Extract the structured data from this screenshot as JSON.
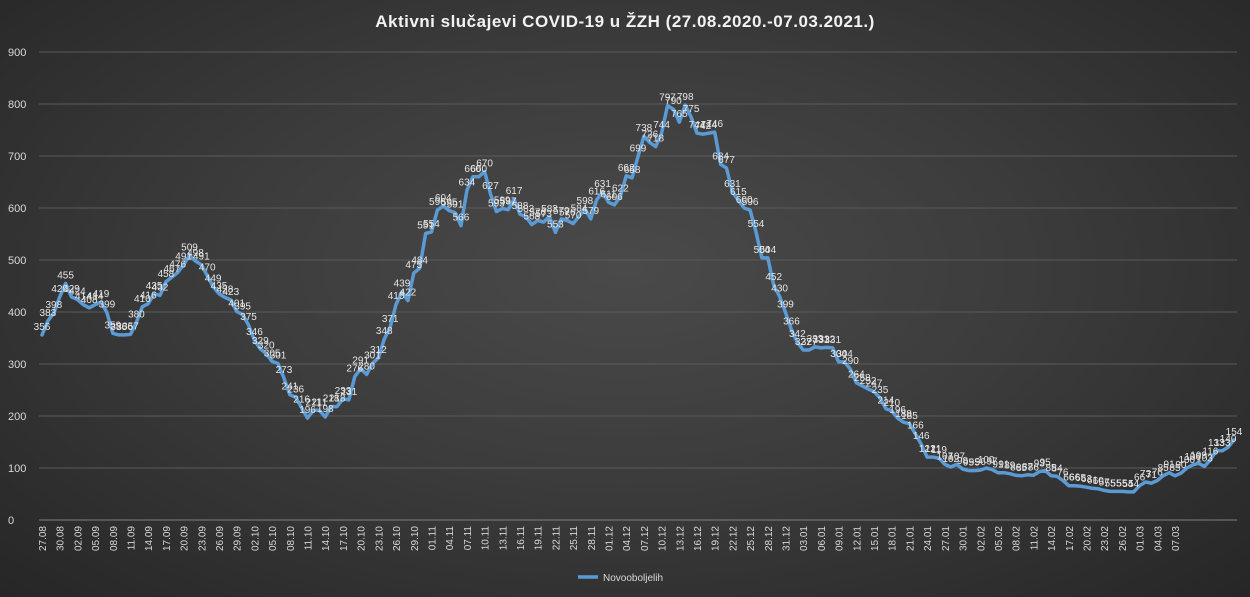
{
  "chart_data": {
    "type": "line",
    "title": "Aktivni  slučajevi  COVID-19  u  ŽZH  (27.08.2020.-07.03.2021.)",
    "xlabel": "",
    "ylabel": "",
    "ylim": [
      0,
      900
    ],
    "yticks": [
      "0",
      "100",
      "200",
      "300",
      "400",
      "500",
      "600",
      "700",
      "800",
      "900"
    ],
    "grid": true,
    "legend_position": "bottom-center",
    "line_color": "#5b9bd5",
    "x_tick_labels": [
      "27.08",
      "30.08",
      "02.09",
      "05.09",
      "08.09",
      "11.09",
      "14.09",
      "17.09",
      "20.09",
      "23.09",
      "26.09",
      "29.09",
      "02.10",
      "05.10",
      "08.10",
      "11.10",
      "14.10",
      "17.10",
      "20.10",
      "23.10",
      "26.10",
      "29.10",
      "01.11",
      "04.11",
      "07.11",
      "10.11",
      "13.11",
      "16.11",
      "19.11",
      "22.11",
      "25.11",
      "28.11",
      "01.12",
      "04.12",
      "07.12",
      "10.12",
      "13.12",
      "16.12",
      "19.12",
      "22.12",
      "25.12",
      "28.12",
      "31.12",
      "03.01",
      "06.01",
      "09.01",
      "12.01",
      "15.01",
      "18.01",
      "21.01",
      "24.01",
      "27.01",
      "30.01",
      "02.02",
      "05.02",
      "08.02",
      "11.02",
      "14.02",
      "17.02",
      "20.02",
      "23.02",
      "26.02",
      "01.03",
      "04.03",
      "07.03"
    ],
    "series": [
      {
        "name": "Novooboljelih",
        "values": [
          356,
          383,
          398,
          429,
          455,
          429,
          424,
          414,
          408,
          414,
          419,
          399,
          359,
          356,
          356,
          357,
          380,
          410,
          416,
          435,
          432,
          458,
          467,
          476,
          491,
          509,
          498,
          491,
          470,
          449,
          435,
          428,
          423,
          401,
          395,
          375,
          346,
          329,
          320,
          305,
          301,
          273,
          241,
          236,
          216,
          196,
          211,
          211,
          198,
          218,
          218,
          233,
          231,
          276,
          291,
          280,
          301,
          312,
          348,
          371,
          415,
          439,
          422,
          475,
          484,
          551,
          554,
          596,
          604,
          595,
          591,
          566,
          634,
          660,
          660,
          670,
          627,
          593,
          599,
          597,
          617,
          588,
          583,
          568,
          576,
          573,
          583,
          553,
          579,
          576,
          570,
          584,
          598,
          579,
          616,
          631,
          611,
          606,
          622,
          662,
          658,
          699,
          738,
          726,
          718,
          744,
          797,
          790,
          765,
          798,
          775,
          744,
          742,
          744,
          746,
          684,
          677,
          631,
          615,
          600,
          596,
          554,
          504,
          504,
          452,
          430,
          399,
          366,
          342,
          327,
          327,
          333,
          331,
          332,
          331,
          304,
          304,
          290,
          264,
          258,
          252,
          247,
          235,
          214,
          210,
          196,
          188,
          185,
          166,
          146,
          121,
          121,
          119,
          107,
          102,
          107,
          98,
          95,
          95,
          96,
          100,
          97,
          91,
          91,
          89,
          86,
          85,
          87,
          86,
          93,
          95,
          85,
          84,
          76,
          66,
          66,
          65,
          63,
          61,
          60,
          57,
          55,
          55,
          55,
          54,
          54,
          66,
          73,
          71,
          76,
          85,
          91,
          85,
          90,
          100,
          106,
          109,
          103,
          116,
          133,
          133,
          140,
          154
        ]
      }
    ]
  }
}
